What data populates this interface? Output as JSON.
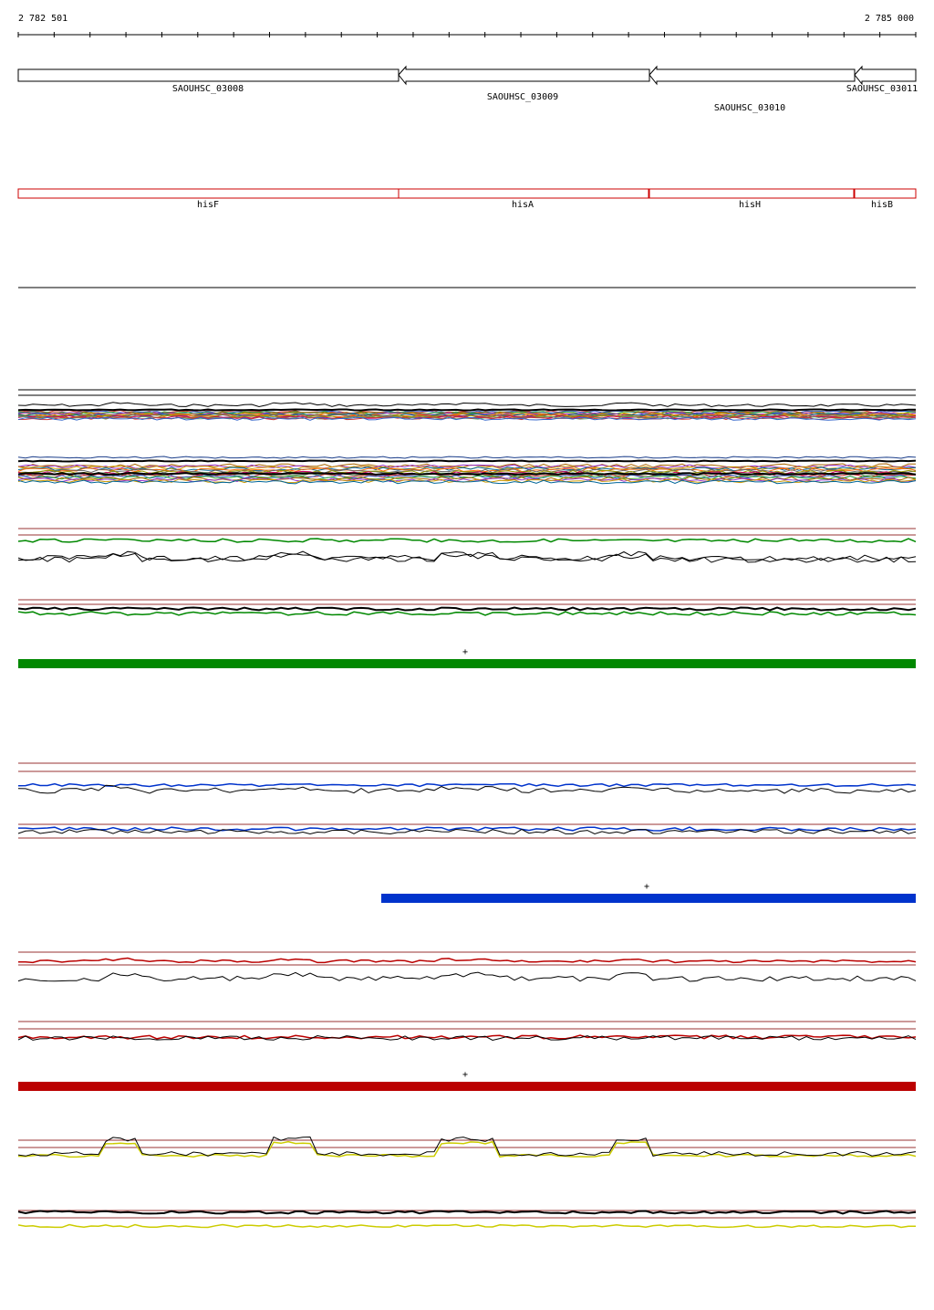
{
  "ruler": {
    "start_label": "2 782 501",
    "end_label": "2 785 000"
  },
  "genes": [
    {
      "id": "SAOUHSC_03008",
      "name": "hisF"
    },
    {
      "id": "SAOUHSC_03009",
      "name": "hisA"
    },
    {
      "id": "SAOUHSC_03010",
      "name": "hisH"
    },
    {
      "id": "SAOUHSC_03011",
      "name": "hisB"
    }
  ],
  "strand_marks": [
    "+",
    "+",
    "+"
  ],
  "colors": {
    "feature_outline": "#000000",
    "gene_outline": "#cc0000",
    "green_track": "#008800",
    "blue_track": "#0033cc",
    "red_track": "#bb0000",
    "yellow_track": "#cccc00",
    "threshold_line": "#993333"
  }
}
